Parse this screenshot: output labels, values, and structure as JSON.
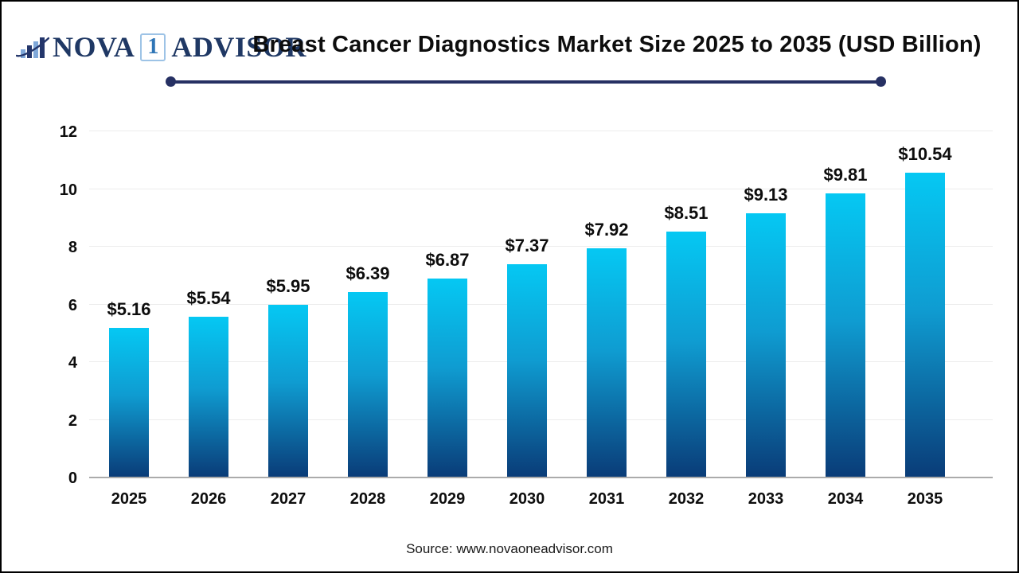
{
  "header": {
    "logo": {
      "icon": "bar-chart-swoosh-icon",
      "part1": "NOVA",
      "number": "1",
      "part2": "ADVISOR"
    }
  },
  "chart_data": {
    "type": "bar",
    "title": "Breast Cancer Diagnostics Market Size 2025 to 2035  (USD Billion)",
    "categories": [
      "2025",
      "2026",
      "2027",
      "2028",
      "2029",
      "2030",
      "2031",
      "2032",
      "2033",
      "2034",
      "2035"
    ],
    "values": [
      5.16,
      5.54,
      5.95,
      6.39,
      6.87,
      7.37,
      7.92,
      8.51,
      9.13,
      9.81,
      10.54
    ],
    "value_labels": [
      "$5.16",
      "$5.54",
      "$5.95",
      "$6.39",
      "$6.87",
      "$7.37",
      "$7.92",
      "$8.51",
      "$9.13",
      "$9.81",
      "$10.54"
    ],
    "xlabel": "",
    "ylabel": "",
    "ylim": [
      0,
      12
    ],
    "yticks": [
      0,
      2,
      4,
      6,
      8,
      10,
      12
    ],
    "grid": true,
    "legend": "none",
    "bar_gradient_top": "#05C8F3",
    "bar_gradient_mid": "#0F9CD1",
    "bar_gradient_bottom": "#0A3C78"
  },
  "footer": {
    "source": "Source: www.novaoneadvisor.com"
  },
  "colors": {
    "accent_navy": "#263063",
    "logo_navy": "#1F3864",
    "logo_light_blue": "#7FA8D9",
    "axis_line": "#ABABAB",
    "gridline": "#ECECEC"
  }
}
